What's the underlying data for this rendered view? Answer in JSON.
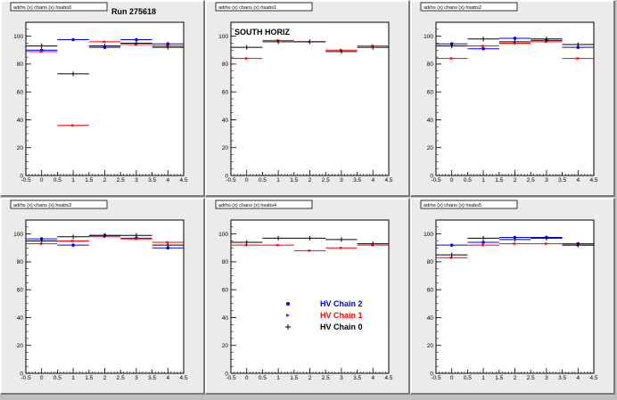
{
  "chart_data": [
    {
      "type": "scatter",
      "title": "Run 275618",
      "header": "adrhs (x) chans (x) hsabs0",
      "x": [
        0,
        1,
        2,
        3,
        4
      ],
      "xerr": 0.5,
      "xlim": [
        -0.5,
        4.5
      ],
      "ylim": [
        0,
        110
      ],
      "xticks": [
        "-0.5",
        "0",
        "0.5",
        "1",
        "1.5",
        "2",
        "2.5",
        "3",
        "3.5",
        "4",
        "4.5"
      ],
      "yticks": [
        "0",
        "20",
        "40",
        "60",
        "80",
        "100"
      ],
      "series": [
        {
          "key": "chain2",
          "color": "#0000ff",
          "values": [
            90,
            97.5,
            92,
            97.5,
            94.5
          ]
        },
        {
          "key": "chain1",
          "color": "#ff0000",
          "values": [
            89,
            36,
            96,
            94,
            93
          ]
        },
        {
          "key": "chain0",
          "color": "#000000",
          "values": [
            93,
            73,
            93,
            95,
            92
          ]
        }
      ]
    },
    {
      "type": "scatter",
      "title": "SOUTH HORIZ",
      "header": "adrhs (x) chans (x) hsabs1",
      "x": [
        0,
        1,
        2,
        3,
        4
      ],
      "xerr": 0.5,
      "xlim": [
        -0.5,
        4.5
      ],
      "ylim": [
        0,
        110
      ],
      "xticks": [
        "-0.5",
        "0",
        "0.5",
        "1",
        "1.5",
        "2",
        "2.5",
        "3",
        "3.5",
        "4",
        "4.5"
      ],
      "yticks": [
        "0",
        "20",
        "40",
        "60",
        "80",
        "100"
      ],
      "series": [
        {
          "key": "chain2",
          "color": "#0000ff",
          "values": [
            null,
            null,
            null,
            null,
            null
          ]
        },
        {
          "key": "chain1",
          "color": "#ff0000",
          "values": [
            84,
            97,
            96,
            90,
            93
          ]
        },
        {
          "key": "chain0",
          "color": "#000000",
          "values": [
            92,
            96,
            96,
            89,
            92
          ]
        }
      ]
    },
    {
      "type": "scatter",
      "title": "",
      "header": "adrhs (x) chans (x) hsabs2",
      "x": [
        0,
        1,
        2,
        3,
        4
      ],
      "xerr": 0.5,
      "xlim": [
        -0.5,
        4.5
      ],
      "ylim": [
        0,
        110
      ],
      "xticks": [
        "-0.5",
        "0",
        "0.5",
        "1",
        "1.5",
        "2",
        "2.5",
        "3",
        "3.5",
        "4",
        "4.5"
      ],
      "yticks": [
        "0",
        "20",
        "40",
        "60",
        "80",
        "100"
      ],
      "series": [
        {
          "key": "chain2",
          "color": "#0000ff",
          "values": [
            94.5,
            91,
            98.5,
            97,
            92
          ]
        },
        {
          "key": "chain1",
          "color": "#ff0000",
          "values": [
            84,
            93,
            95,
            96,
            84
          ]
        },
        {
          "key": "chain0",
          "color": "#000000",
          "values": [
            93,
            98,
            96,
            98,
            94
          ]
        }
      ]
    },
    {
      "type": "scatter",
      "title": "",
      "header": "adrhs (x) chans (x) hsabs3",
      "x": [
        0,
        1,
        2,
        3,
        4
      ],
      "xerr": 0.5,
      "xlim": [
        -0.5,
        4.5
      ],
      "ylim": [
        0,
        110
      ],
      "xticks": [
        "-0.5",
        "0",
        "0.5",
        "1",
        "1.5",
        "2",
        "2.5",
        "3",
        "3.5",
        "4",
        "4.5"
      ],
      "yticks": [
        "0",
        "20",
        "40",
        "60",
        "80",
        "100"
      ],
      "series": [
        {
          "key": "chain2",
          "color": "#0000ff",
          "values": [
            96.5,
            92,
            99,
            97,
            90
          ]
        },
        {
          "key": "chain1",
          "color": "#ff0000",
          "values": [
            93,
            95,
            98,
            96.5,
            94
          ]
        },
        {
          "key": "chain0",
          "color": "#000000",
          "values": [
            95,
            98,
            99,
            99,
            92
          ]
        }
      ]
    },
    {
      "type": "scatter",
      "title": "",
      "header": "adrhs (x) chans (x) hsabs4",
      "x": [
        0,
        1,
        2,
        3,
        4
      ],
      "xerr": 0.5,
      "xlim": [
        -0.5,
        4.5
      ],
      "ylim": [
        0,
        110
      ],
      "xticks": [
        "-0.5",
        "0",
        "0.5",
        "1",
        "1.5",
        "2",
        "2.5",
        "3",
        "3.5",
        "4",
        "4.5"
      ],
      "yticks": [
        "0",
        "20",
        "40",
        "60",
        "80",
        "100"
      ],
      "legend": {
        "placement": "bottom-right",
        "entries": [
          {
            "label": "HV Chain 2",
            "color": "#0000ff",
            "marker": "dot"
          },
          {
            "label": "HV Chain 1",
            "color": "#ff0000",
            "marker": "arrow"
          },
          {
            "label": "HV Chain 0",
            "color": "#000000",
            "marker": "plus"
          }
        ]
      },
      "series": [
        {
          "key": "chain2",
          "color": "#0000ff",
          "values": [
            null,
            null,
            null,
            null,
            null
          ]
        },
        {
          "key": "chain1",
          "color": "#ff0000",
          "values": [
            92,
            92,
            88,
            90,
            92
          ]
        },
        {
          "key": "chain0",
          "color": "#000000",
          "values": [
            94,
            97,
            97,
            96,
            93
          ]
        }
      ]
    },
    {
      "type": "scatter",
      "title": "",
      "header": "adrhs (x) chans (x) hsabs5",
      "x": [
        0,
        1,
        2,
        3,
        4
      ],
      "xerr": 0.5,
      "xlim": [
        -0.5,
        4.5
      ],
      "ylim": [
        0,
        110
      ],
      "xticks": [
        "-0.5",
        "0",
        "0.5",
        "1",
        "1.5",
        "2",
        "2.5",
        "3",
        "3.5",
        "4",
        "4.5"
      ],
      "yticks": [
        "0",
        "20",
        "40",
        "60",
        "80",
        "100"
      ],
      "series": [
        {
          "key": "chain2",
          "color": "#0000ff",
          "values": [
            92,
            94,
            97.5,
            97.5,
            93
          ]
        },
        {
          "key": "chain1",
          "color": "#ff0000",
          "values": [
            83,
            92,
            93,
            93,
            92
          ]
        },
        {
          "key": "chain0",
          "color": "#000000",
          "values": [
            85,
            97,
            96,
            97,
            92
          ]
        }
      ]
    }
  ]
}
